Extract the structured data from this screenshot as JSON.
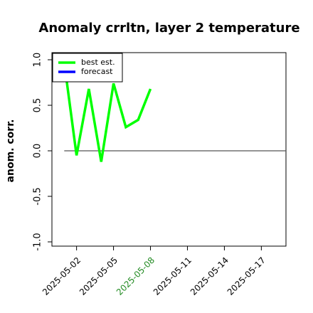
{
  "chart_data": {
    "type": "line",
    "title": "Anomaly crrltn, layer 2 temperature",
    "xlabel": "",
    "ylabel": "anom. corr.",
    "ylim": [
      -1.0,
      1.0
    ],
    "y_ticks": [
      -1.0,
      -0.5,
      0.0,
      0.5,
      1.0
    ],
    "y_tick_labels": [
      "-1.0",
      "-0.5",
      "0.0",
      "0.5",
      "1.0"
    ],
    "x_domain": [
      "2025-04-30",
      "2025-05-19"
    ],
    "x_ticks": [
      "2025-05-02",
      "2025-05-05",
      "2025-05-08",
      "2025-05-11",
      "2025-05-14",
      "2025-05-17"
    ],
    "x_tick_labels": [
      "2025-05-02",
      "2025-05-05",
      "2025-05-08",
      "2025-05-11",
      "2025-05-14",
      "2025-05-17"
    ],
    "highlighted_tick": "2025-05-08",
    "highlight_color": "#228b22",
    "reference_line": {
      "y": 0.0,
      "x_from": "2025-05-01",
      "x_to": "2025-05-19",
      "color": "#555555"
    },
    "grid": false,
    "legend": "top-left",
    "series": [
      {
        "name": "best est.",
        "color": "#00ff00",
        "x": [
          "2025-05-01",
          "2025-05-02",
          "2025-05-03",
          "2025-05-04",
          "2025-05-05",
          "2025-05-06",
          "2025-05-07",
          "2025-05-08"
        ],
        "y": [
          0.97,
          -0.05,
          0.68,
          -0.12,
          0.74,
          0.26,
          0.34,
          0.68
        ]
      },
      {
        "name": "forecast",
        "color": "#0000ff",
        "x": [],
        "y": []
      }
    ]
  }
}
